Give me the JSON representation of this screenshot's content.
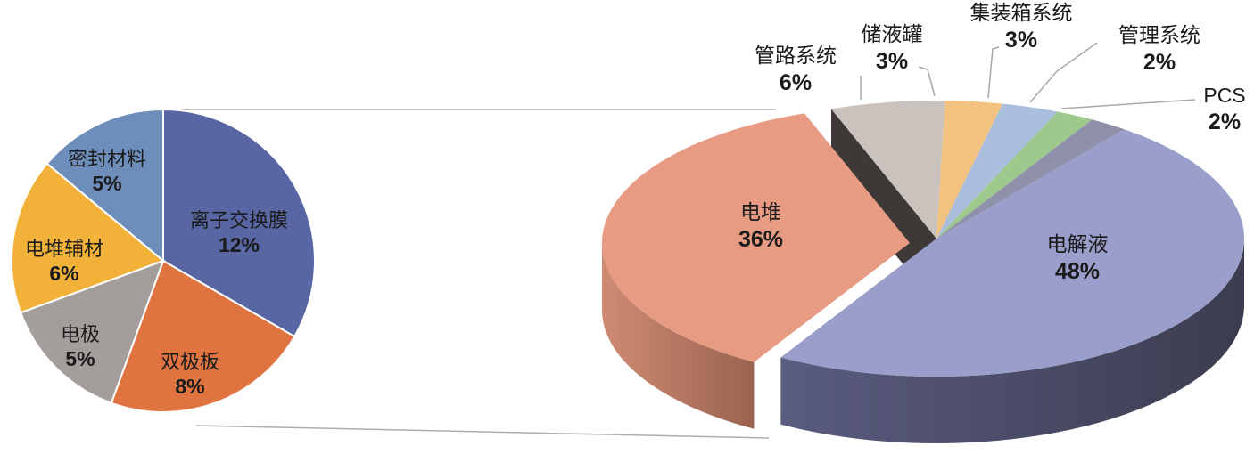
{
  "chart_data": [
    {
      "type": "pie",
      "title": "",
      "slices": [
        {
          "label": "离子交换膜",
          "value": 12,
          "display": "12%",
          "color": "#5866a4"
        },
        {
          "label": "双极板",
          "value": 8,
          "display": "8%",
          "color": "#e07441"
        },
        {
          "label": "电极",
          "value": 5,
          "display": "5%",
          "color": "#a39e9b"
        },
        {
          "label": "电堆辅材",
          "value": 6,
          "display": "6%",
          "color": "#f2b23a"
        },
        {
          "label": "密封材料",
          "value": 5,
          "display": "5%",
          "color": "#6d8dbb"
        }
      ]
    },
    {
      "type": "pie",
      "title": "",
      "style": "3d-exploded",
      "slices": [
        {
          "label": "管路系统",
          "value": 6,
          "display": "6%",
          "color": "#cac2bd",
          "side": "#8f8782"
        },
        {
          "label": "储液罐",
          "value": 3,
          "display": "3%",
          "color": "#f2c27e",
          "side": "#b88c50"
        },
        {
          "label": "集装箱系统",
          "value": 3,
          "display": "3%",
          "color": "#a9bddc",
          "side": "#7688a5"
        },
        {
          "label": "管理系统",
          "value": 2,
          "display": "2%",
          "color": "#9dc98c",
          "side": "#6d9360"
        },
        {
          "label": "PCS",
          "value": 2,
          "display": "2%",
          "color": "#8f90aa",
          "side": "#5e5f78"
        },
        {
          "label": "电解液",
          "value": 48,
          "display": "48%",
          "color": "#9a9ecb",
          "side": "#5a5c80"
        },
        {
          "label": "电堆",
          "value": 36,
          "display": "36%",
          "color": "#e79b82",
          "side": "#b97863",
          "exploded": true
        }
      ]
    }
  ]
}
